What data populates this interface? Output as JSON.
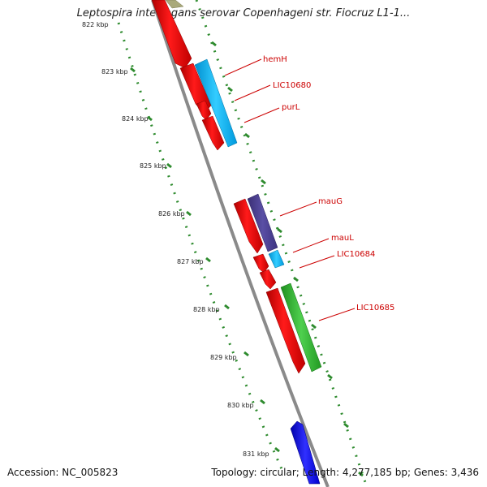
{
  "title": "Leptospira interrogans serovar Copenhageni str. Fiocruz L1-1...",
  "accession": "Accession: NC_005823",
  "summary": "Topology: circular; Length: 4,277,185 bp; Genes: 3,436",
  "ruler_labels": [
    "822 kbp",
    "823 kbp",
    "824 kbp",
    "825 kbp",
    "826 kbp",
    "827 kbp",
    "828 kbp",
    "829 kbp",
    "830 kbp",
    "831 kbp"
  ],
  "gene_labels": [
    "hemH",
    "LIC10680",
    "purL",
    "mauG",
    "mauL",
    "LIC10684",
    "LIC10685"
  ],
  "colors": {
    "backbone": "#888888",
    "forward_gene": "#ff0000",
    "cds_cyan": "#00bfff",
    "cds_purple": "#4b3f8f",
    "cds_green": "#2db52d",
    "cds_blue": "#0000ff",
    "cds_olive": "#a9a97a",
    "ruler": "#2e8b2e",
    "label": "#cc0000"
  }
}
